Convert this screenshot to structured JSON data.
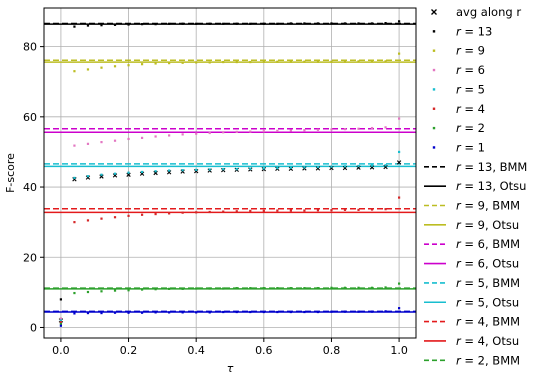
{
  "chart_data": {
    "type": "scatter",
    "xlabel": "τ",
    "ylabel": "F-score",
    "xlim": [
      -0.05,
      1.05
    ],
    "ylim": [
      -3,
      91
    ],
    "xticks": [
      0.0,
      0.2,
      0.4,
      0.6,
      0.8,
      1.0
    ],
    "xtick_labels": [
      "0.0",
      "0.2",
      "0.4",
      "0.6",
      "0.8",
      "1.0"
    ],
    "yticks": [
      0,
      20,
      40,
      60,
      80
    ],
    "ytick_labels": [
      "0",
      "20",
      "40",
      "60",
      "80"
    ],
    "grid": true,
    "legend_placement": "outside-right",
    "tau": [
      0.0,
      0.04,
      0.08,
      0.12,
      0.16,
      0.2,
      0.24,
      0.28,
      0.32,
      0.36,
      0.4,
      0.44,
      0.48,
      0.52,
      0.56,
      0.6,
      0.64,
      0.68,
      0.72,
      0.76,
      0.8,
      0.84,
      0.88,
      0.92,
      0.96,
      1.0
    ],
    "series": [
      {
        "name": "avg along r",
        "label_prefix": "",
        "label_suffix": "",
        "style": "x",
        "color": "#000000",
        "values": [
          2.0,
          42.2,
          42.7,
          43.0,
          43.3,
          43.5,
          43.8,
          44.0,
          44.2,
          44.4,
          44.5,
          44.7,
          44.8,
          44.9,
          45.0,
          45.1,
          45.2,
          45.2,
          45.3,
          45.3,
          45.4,
          45.4,
          45.5,
          45.6,
          45.7,
          47.0
        ]
      },
      {
        "name": "13",
        "label_prefix": "r",
        "label_suffix": "",
        "style": "dot",
        "color": "#000000",
        "values": [
          8.0,
          85.7,
          86.0,
          86.1,
          86.2,
          86.3,
          86.4,
          86.4,
          86.5,
          86.5,
          86.5,
          86.5,
          86.5,
          86.5,
          86.5,
          86.5,
          86.5,
          86.6,
          86.6,
          86.6,
          86.6,
          86.6,
          86.6,
          86.6,
          86.7,
          87.2
        ]
      },
      {
        "name": "9",
        "label_prefix": "r",
        "label_suffix": "",
        "style": "dot",
        "color": "#bcbd22",
        "values": [
          2.5,
          73.0,
          73.5,
          74.0,
          74.4,
          74.7,
          75.0,
          75.2,
          75.3,
          75.4,
          75.5,
          75.5,
          75.6,
          75.6,
          75.6,
          75.7,
          75.7,
          75.7,
          75.7,
          75.7,
          75.7,
          75.7,
          75.8,
          75.8,
          75.8,
          78.0
        ]
      },
      {
        "name": "6",
        "label_prefix": "r",
        "label_suffix": "",
        "style": "dot",
        "color": "#e377c2",
        "values": [
          2.5,
          51.8,
          52.3,
          52.8,
          53.2,
          53.7,
          54.0,
          54.4,
          54.7,
          55.0,
          55.2,
          55.4,
          55.6,
          55.7,
          55.8,
          55.9,
          56.0,
          56.1,
          56.2,
          56.3,
          56.4,
          56.5,
          56.6,
          56.8,
          57.0,
          59.5
        ]
      },
      {
        "name": "5",
        "label_prefix": "r",
        "label_suffix": "",
        "style": "dot",
        "color": "#17becf",
        "values": [
          2.0,
          42.6,
          43.1,
          43.5,
          43.8,
          44.1,
          44.3,
          44.5,
          44.7,
          44.8,
          44.9,
          45.0,
          45.1,
          45.1,
          45.2,
          45.3,
          45.4,
          45.5,
          45.6,
          45.7,
          45.8,
          45.9,
          46.0,
          46.1,
          46.2,
          50.0
        ]
      },
      {
        "name": "4",
        "label_prefix": "r",
        "label_suffix": "",
        "style": "dot",
        "color": "#d62728",
        "values": [
          1.5,
          30.0,
          30.5,
          31.0,
          31.4,
          31.8,
          32.1,
          32.3,
          32.5,
          32.7,
          32.8,
          32.9,
          33.0,
          33.1,
          33.2,
          33.2,
          33.3,
          33.3,
          33.3,
          33.4,
          33.4,
          33.5,
          33.5,
          33.6,
          33.7,
          37.0
        ]
      },
      {
        "name": "2",
        "label_prefix": "r",
        "label_suffix": "",
        "style": "dot",
        "color": "#2ca02c",
        "values": [
          1.0,
          9.8,
          10.1,
          10.3,
          10.5,
          10.6,
          10.8,
          10.9,
          11.0,
          11.0,
          11.1,
          11.1,
          11.1,
          11.2,
          11.2,
          11.2,
          11.2,
          11.2,
          11.2,
          11.2,
          11.3,
          11.3,
          11.3,
          11.3,
          11.4,
          12.5
        ]
      },
      {
        "name": "1",
        "label_prefix": "r",
        "label_suffix": "",
        "style": "dot",
        "color": "#0000cc",
        "values": [
          0.5,
          4.0,
          4.1,
          4.1,
          4.2,
          4.2,
          4.2,
          4.3,
          4.3,
          4.3,
          4.3,
          4.3,
          4.4,
          4.4,
          4.4,
          4.4,
          4.4,
          4.4,
          4.4,
          4.4,
          4.5,
          4.5,
          4.5,
          4.5,
          4.6,
          5.5
        ]
      }
    ],
    "reference_lines": [
      {
        "name": "13, BMM",
        "label_prefix": "r",
        "y": 86.6,
        "color": "#000000",
        "dash": true
      },
      {
        "name": "13, Otsu",
        "label_prefix": "r",
        "y": 86.4,
        "color": "#000000",
        "dash": false
      },
      {
        "name": "9, BMM",
        "label_prefix": "r",
        "y": 76.1,
        "color": "#bcbd22",
        "dash": true
      },
      {
        "name": "9, Otsu",
        "label_prefix": "r",
        "y": 75.6,
        "color": "#bcbd22",
        "dash": false
      },
      {
        "name": "6, BMM",
        "label_prefix": "r",
        "y": 56.6,
        "color": "#cc00cc",
        "dash": true
      },
      {
        "name": "6, Otsu",
        "label_prefix": "r",
        "y": 55.6,
        "color": "#cc00cc",
        "dash": false
      },
      {
        "name": "5, BMM",
        "label_prefix": "r",
        "y": 46.6,
        "color": "#17becf",
        "dash": true
      },
      {
        "name": "5, Otsu",
        "label_prefix": "r",
        "y": 45.9,
        "color": "#17becf",
        "dash": false
      },
      {
        "name": "4, BMM",
        "label_prefix": "r",
        "y": 33.8,
        "color": "#e31a1c",
        "dash": true
      },
      {
        "name": "4, Otsu",
        "label_prefix": "r",
        "y": 32.8,
        "color": "#e31a1c",
        "dash": false
      },
      {
        "name": "2, BMM",
        "label_prefix": "r",
        "y": 11.2,
        "color": "#2ca02c",
        "dash": true
      },
      {
        "name": "2, Otsu",
        "label_prefix": "r",
        "y": 11.0,
        "color": "#2ca02c",
        "dash": false
      },
      {
        "name": "1, BMM",
        "label_prefix": "r",
        "y": 4.6,
        "color": "#0000cc",
        "dash": true
      },
      {
        "name": "1, Otsu",
        "label_prefix": "r",
        "y": 4.4,
        "color": "#0000cc",
        "dash": false
      }
    ],
    "legend_entries": [
      {
        "text": "avg along r",
        "prefix": "",
        "kind": "x",
        "color": "#000000"
      },
      {
        "text": "13",
        "prefix": "r",
        "kind": "dot",
        "color": "#000000"
      },
      {
        "text": "9",
        "prefix": "r",
        "kind": "dot",
        "color": "#bcbd22"
      },
      {
        "text": "6",
        "prefix": "r",
        "kind": "dot",
        "color": "#e377c2"
      },
      {
        "text": "5",
        "prefix": "r",
        "kind": "dot",
        "color": "#17becf"
      },
      {
        "text": "4",
        "prefix": "r",
        "kind": "dot",
        "color": "#d62728"
      },
      {
        "text": "2",
        "prefix": "r",
        "kind": "dot",
        "color": "#2ca02c"
      },
      {
        "text": "1",
        "prefix": "r",
        "kind": "dot",
        "color": "#0000cc"
      },
      {
        "text": "13, BMM",
        "prefix": "r",
        "kind": "dash",
        "color": "#000000"
      },
      {
        "text": "13, Otsu",
        "prefix": "r",
        "kind": "solid",
        "color": "#000000"
      },
      {
        "text": "9, BMM",
        "prefix": "r",
        "kind": "dash",
        "color": "#bcbd22"
      },
      {
        "text": "9, Otsu",
        "prefix": "r",
        "kind": "solid",
        "color": "#bcbd22"
      },
      {
        "text": "6, BMM",
        "prefix": "r",
        "kind": "dash",
        "color": "#cc00cc"
      },
      {
        "text": "6, Otsu",
        "prefix": "r",
        "kind": "solid",
        "color": "#cc00cc"
      },
      {
        "text": "5, BMM",
        "prefix": "r",
        "kind": "dash",
        "color": "#17becf"
      },
      {
        "text": "5, Otsu",
        "prefix": "r",
        "kind": "solid",
        "color": "#17becf"
      },
      {
        "text": "4, BMM",
        "prefix": "r",
        "kind": "dash",
        "color": "#e31a1c"
      },
      {
        "text": "4, Otsu",
        "prefix": "r",
        "kind": "solid",
        "color": "#e31a1c"
      },
      {
        "text": "2, BMM",
        "prefix": "r",
        "kind": "dash",
        "color": "#2ca02c"
      }
    ]
  }
}
